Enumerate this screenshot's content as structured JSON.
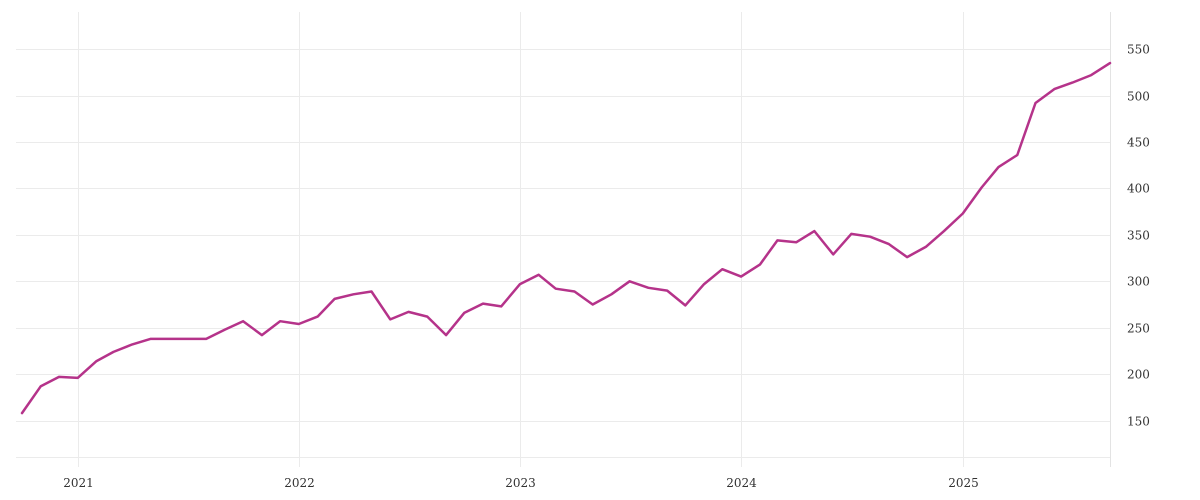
{
  "chart_data": {
    "type": "line",
    "title": "",
    "xlabel": "",
    "ylabel": "",
    "y_axis_side": "right",
    "grid": true,
    "xlim": [
      "2020-10-01",
      "2025-09-01"
    ],
    "ylim": [
      100,
      590
    ],
    "x_ticks": [
      {
        "date": "2021-01-01",
        "label": "2021"
      },
      {
        "date": "2022-01-01",
        "label": "2022"
      },
      {
        "date": "2023-01-01",
        "label": "2023"
      },
      {
        "date": "2024-01-01",
        "label": "2024"
      },
      {
        "date": "2025-01-01",
        "label": "2025"
      }
    ],
    "y_ticks": [
      150,
      200,
      250,
      300,
      350,
      400,
      450,
      500,
      550
    ],
    "y_tick_labels": [
      "150",
      "200",
      "250",
      "300",
      "350",
      "400",
      "450",
      "500",
      "550"
    ],
    "series": [
      {
        "color": "#b5338a",
        "x": [
          "2020-10-01",
          "2020-11-01",
          "2020-12-01",
          "2021-01-01",
          "2021-02-01",
          "2021-03-01",
          "2021-04-01",
          "2021-05-01",
          "2021-06-01",
          "2021-07-01",
          "2021-08-01",
          "2021-09-01",
          "2021-10-01",
          "2021-11-01",
          "2021-12-01",
          "2022-01-01",
          "2022-02-01",
          "2022-03-01",
          "2022-04-01",
          "2022-05-01",
          "2022-06-01",
          "2022-07-01",
          "2022-08-01",
          "2022-09-01",
          "2022-10-01",
          "2022-11-01",
          "2022-12-01",
          "2023-01-01",
          "2023-02-01",
          "2023-03-01",
          "2023-04-01",
          "2023-05-01",
          "2023-06-01",
          "2023-07-01",
          "2023-08-01",
          "2023-09-01",
          "2023-10-01",
          "2023-11-01",
          "2023-12-01",
          "2024-01-01",
          "2024-02-01",
          "2024-03-01",
          "2024-04-01",
          "2024-05-01",
          "2024-06-01",
          "2024-07-01",
          "2024-08-01",
          "2024-09-01",
          "2024-10-01",
          "2024-11-01",
          "2024-12-01",
          "2025-01-01",
          "2025-02-01",
          "2025-03-01",
          "2025-04-01",
          "2025-05-01",
          "2025-06-01",
          "2025-07-01",
          "2025-08-01",
          "2025-09-01"
        ],
        "values": [
          158,
          187,
          197,
          196,
          214,
          224,
          232,
          238,
          238,
          238,
          238,
          248,
          257,
          242,
          257,
          254,
          262,
          281,
          286,
          289,
          259,
          267,
          262,
          242,
          266,
          276,
          273,
          297,
          307,
          292,
          289,
          275,
          286,
          300,
          293,
          290,
          274,
          297,
          313,
          305,
          318,
          344,
          342,
          354,
          329,
          351,
          348,
          340,
          326,
          337,
          354,
          373,
          401,
          423,
          436,
          492,
          507,
          514,
          522,
          535
        ]
      }
    ]
  }
}
